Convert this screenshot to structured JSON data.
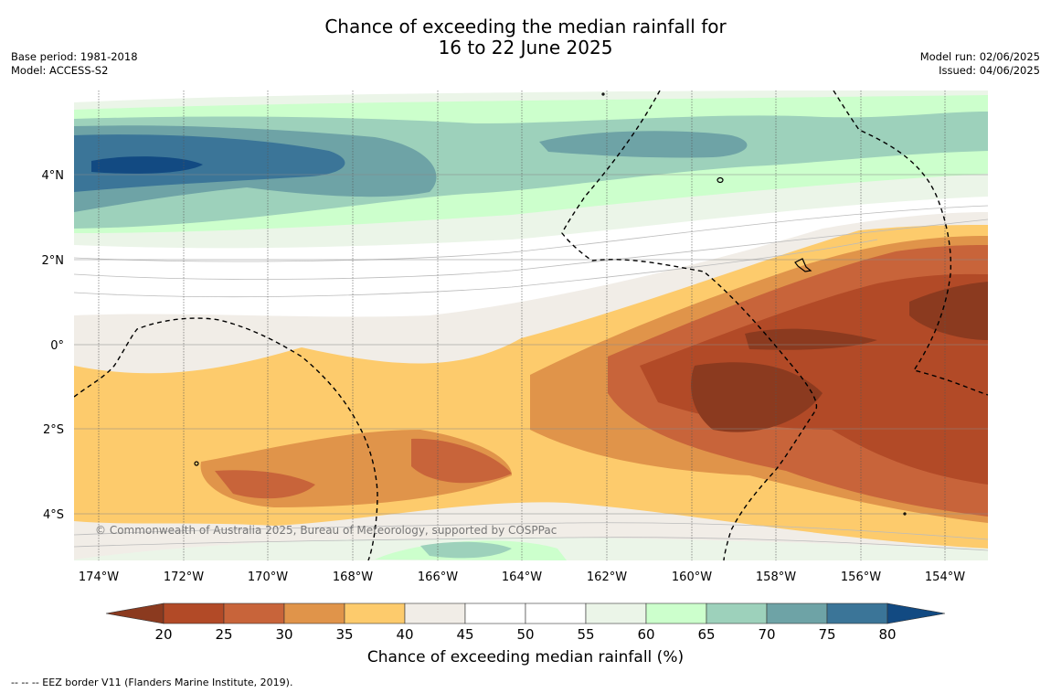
{
  "title_line1": "Chance of exceeding the median rainfall for",
  "title_line2": "16 to 22 June 2025",
  "base_period": "Base period: 1981-2018",
  "model": "Model: ACCESS-S2",
  "model_run": "Model run: 02/06/2025",
  "issued": "Issued: 04/06/2025",
  "credit": "© Commonwealth of Australia 2025, Bureau of Meteorology, supported by COSPPac",
  "footnote": "--  --  -- EEZ border V11 (Flanders Marine Institute, 2019).",
  "lon_labels": [
    "174°W",
    "172°W",
    "170°W",
    "168°W",
    "166°W",
    "164°W",
    "162°W",
    "160°W",
    "158°W",
    "156°W",
    "154°W"
  ],
  "lat_labels": [
    "4°N",
    "2°N",
    "0°",
    "2°S",
    "4°S"
  ],
  "colorbar": {
    "title": "Chance of exceeding median rainfall (%)",
    "ticks": [
      "20",
      "25",
      "30",
      "35",
      "40",
      "45",
      "50",
      "55",
      "60",
      "65",
      "70",
      "75",
      "80"
    ],
    "colors": [
      "#8b3a1f",
      "#b24a27",
      "#c8643a",
      "#e0944a",
      "#fdcb6c",
      "#f1ede7",
      "#ffffff",
      "#ffffff",
      "#ebf5e8",
      "#ccffcc",
      "#9dd1bb",
      "#6ea3a6",
      "#3b7598",
      "#124a82"
    ]
  }
}
